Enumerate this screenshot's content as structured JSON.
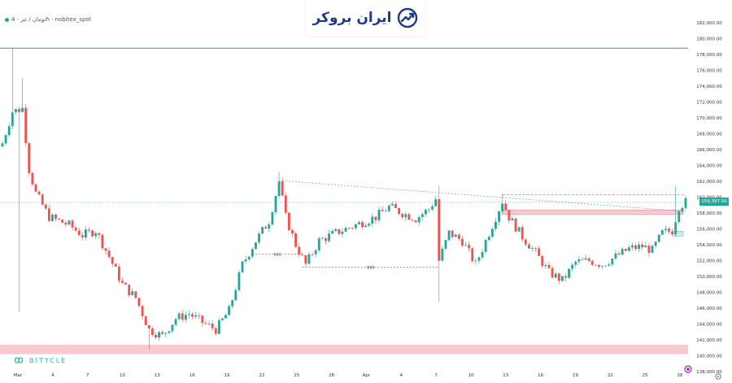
{
  "header": {
    "symbol_label": "تومان / تتر · 4h · nobitex_spot"
  },
  "brand": {
    "name": "ایران بروکر",
    "logo_icon": "chart-up-arrow-icon"
  },
  "watermark": {
    "name": "BITYCLE",
    "icon": "infinity-icon"
  },
  "colors": {
    "up": "#26a69a",
    "down": "#ef5350",
    "zone_red": "#f8c9cf",
    "zone_green": "#cdebe6",
    "trend": "#7aa7e8",
    "price_line": "#26a69a"
  },
  "current_price": "159,387.00",
  "chart_data": {
    "type": "candlestick",
    "ylim": [
      138000,
      182000
    ],
    "y_ticks": [
      "182,000.00",
      "180,000.00",
      "178,000.00",
      "176,000.00",
      "174,000.00",
      "172,000.00",
      "170,000.00",
      "168,000.00",
      "166,000.00",
      "164,000.00",
      "162,000.00",
      "160,000.00",
      "158,000.00",
      "156,000.00",
      "154,000.00",
      "152,000.00",
      "150,000.00",
      "148,000.00",
      "146,000.00",
      "144,000.00",
      "142,000.00",
      "140,000.00",
      "138,000.00"
    ],
    "x_ticks": [
      "Mar",
      "4",
      "7",
      "10",
      "13",
      "16",
      "19",
      "22",
      "25",
      "28",
      "Apr",
      "4",
      "7",
      "10",
      "13",
      "16",
      "19",
      "22",
      "25",
      "28"
    ],
    "anchors": [
      {
        "i": 0,
        "c": 166800
      },
      {
        "i": 3,
        "c": 170800
      },
      {
        "i": 6,
        "c": 171200
      },
      {
        "i": 8,
        "c": 163500
      },
      {
        "i": 10,
        "c": 160500
      },
      {
        "i": 14,
        "c": 157500
      },
      {
        "i": 20,
        "c": 156500
      },
      {
        "i": 24,
        "c": 155200
      },
      {
        "i": 28,
        "c": 155800
      },
      {
        "i": 32,
        "c": 152500
      },
      {
        "i": 36,
        "c": 149000
      },
      {
        "i": 40,
        "c": 147300
      },
      {
        "i": 44,
        "c": 143300
      },
      {
        "i": 48,
        "c": 142500
      },
      {
        "i": 52,
        "c": 144700
      },
      {
        "i": 56,
        "c": 145300
      },
      {
        "i": 60,
        "c": 144200
      },
      {
        "i": 64,
        "c": 143300
      },
      {
        "i": 68,
        "c": 145700
      },
      {
        "i": 72,
        "c": 151500
      },
      {
        "i": 76,
        "c": 154500
      },
      {
        "i": 80,
        "c": 157000
      },
      {
        "i": 83,
        "c": 162000
      },
      {
        "i": 85,
        "c": 157500
      },
      {
        "i": 88,
        "c": 154000
      },
      {
        "i": 91,
        "c": 151500
      },
      {
        "i": 95,
        "c": 154500
      },
      {
        "i": 100,
        "c": 155500
      },
      {
        "i": 106,
        "c": 156500
      },
      {
        "i": 112,
        "c": 157500
      },
      {
        "i": 116,
        "c": 158800
      },
      {
        "i": 120,
        "c": 158000
      },
      {
        "i": 124,
        "c": 157300
      },
      {
        "i": 128,
        "c": 158500
      },
      {
        "i": 130,
        "c": 159800
      },
      {
        "i": 131,
        "c": 152000
      },
      {
        "i": 134,
        "c": 155500
      },
      {
        "i": 138,
        "c": 154500
      },
      {
        "i": 142,
        "c": 151500
      },
      {
        "i": 146,
        "c": 155500
      },
      {
        "i": 150,
        "c": 159500
      },
      {
        "i": 152,
        "c": 157500
      },
      {
        "i": 156,
        "c": 155000
      },
      {
        "i": 160,
        "c": 153000
      },
      {
        "i": 164,
        "c": 150500
      },
      {
        "i": 168,
        "c": 149500
      },
      {
        "i": 172,
        "c": 151800
      },
      {
        "i": 176,
        "c": 152000
      },
      {
        "i": 180,
        "c": 151500
      },
      {
        "i": 184,
        "c": 152500
      },
      {
        "i": 188,
        "c": 153500
      },
      {
        "i": 192,
        "c": 153800
      },
      {
        "i": 195,
        "c": 153300
      },
      {
        "i": 198,
        "c": 155500
      },
      {
        "i": 201,
        "c": 155800
      },
      {
        "i": 203,
        "c": 158800
      },
      {
        "i": 205,
        "c": 159400
      }
    ],
    "spikes": [
      {
        "i": 3,
        "h": 178800
      },
      {
        "i": 5,
        "l": 145500
      },
      {
        "i": 6,
        "h": 175000
      },
      {
        "i": 83,
        "h": 163200
      },
      {
        "i": 131,
        "h": 161500,
        "l": 146800
      },
      {
        "i": 150,
        "h": 160400
      },
      {
        "i": 202,
        "h": 161400
      },
      {
        "i": 44,
        "l": 140800
      }
    ],
    "levels": [
      {
        "kind": "horizontal-line",
        "price": 178800,
        "color": "#26a69a"
      },
      {
        "kind": "zone",
        "from": 141400,
        "to": 140200,
        "color": "#f8c9cf"
      },
      {
        "kind": "zone",
        "from": 158400,
        "to": 157800,
        "color": "#f8c9cf"
      },
      {
        "kind": "zone",
        "from": 155700,
        "to": 155100,
        "color": "#cdebe6"
      },
      {
        "kind": "trendline",
        "from": {
          "i": 83,
          "p": 162100
        },
        "to": {
          "i": 205,
          "p": 158200
        },
        "color": "#7aa7e8"
      },
      {
        "kind": "dashed-line",
        "price": 160300,
        "from_i": 150,
        "to_i": 205,
        "color": "#ef5350"
      },
      {
        "kind": "liquidity",
        "label": "$$$",
        "price": 152800,
        "from_i": 75,
        "to_i": 90
      },
      {
        "kind": "liquidity",
        "label": "$$$",
        "price": 151200,
        "from_i": 90,
        "to_i": 131
      }
    ]
  }
}
